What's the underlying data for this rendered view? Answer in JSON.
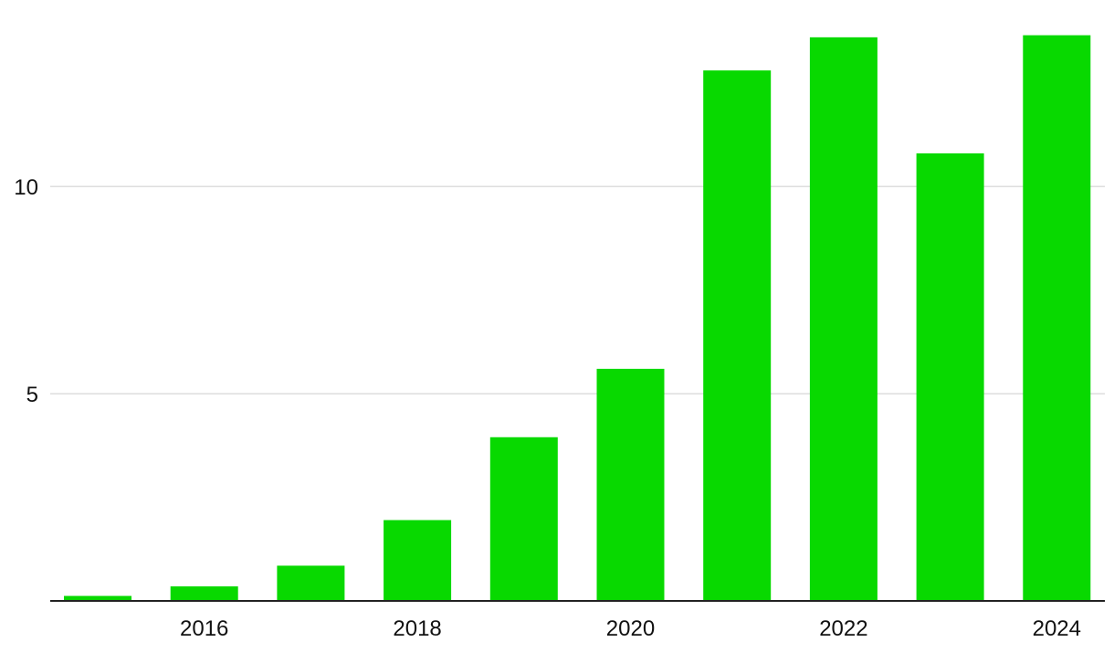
{
  "chart_data": {
    "type": "bar",
    "title": "",
    "xlabel": "",
    "ylabel": "",
    "categories": [
      "2015",
      "2016",
      "2017",
      "2018",
      "2019",
      "2020",
      "2021",
      "2022",
      "2023",
      "2024"
    ],
    "values": [
      0.12,
      0.35,
      0.85,
      1.95,
      3.95,
      5.6,
      12.8,
      13.6,
      10.8,
      13.65
    ],
    "ylim": [
      0,
      14.5
    ],
    "y_ticks": [
      5,
      10
    ],
    "x_tick_labels": [
      "2016",
      "2018",
      "2020",
      "2022",
      "2024"
    ],
    "grid": true,
    "legend": "none",
    "colors": {
      "bar": "#08d900",
      "grid": "#dedede",
      "axis": "#222222",
      "text": "#111111"
    }
  }
}
